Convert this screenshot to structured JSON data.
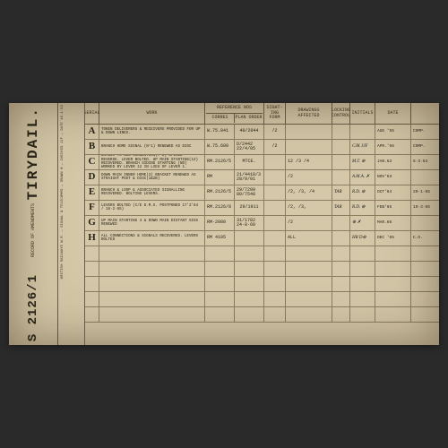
{
  "palette": {
    "paper": "#d4c8a8",
    "ink": "#2a2418",
    "rule": "#6b5d45",
    "rule_light": "#8a7d60",
    "frame": "#2a2a2a"
  },
  "left": {
    "title": "TIRYDAIL.",
    "subtitle": "RECORD OF AMENDMENTS",
    "reference": "S 2126/1",
    "meta": "BRITISH RAILWAYS W.R. — SIGNAL & TELECOMMS — DRAWN ⊕ — CHECKED JJF — DATE 16.1.63"
  },
  "headers": {
    "serial": "SERIAL",
    "work": "WORK",
    "reference": "REFERENCE NOS",
    "ref_corres": "CORRES",
    "ref_plan": "PLAN ORDER",
    "sighting": "SIGHT-ING FORM",
    "drawings": "DRAWINGS AFFECTED",
    "locking": "LOCKING CONTROL",
    "initials": "INITIALS",
    "date": "DATE",
    "comp": ""
  },
  "rows": [
    {
      "serial": "A",
      "work": "TOKEN DELIVERERS & RECEIVERS PROVIDED FOR UP & DOWN LINES.",
      "ref1": "W.75.841",
      "ref2": "40/2044",
      "sight": "/2",
      "draw": "",
      "lock": "",
      "init": "",
      "date": "AUG '55",
      "comp": "COMP."
    },
    {
      "serial": "B",
      "work": "BRANCH HOME SIGNAL (N°1) RENEWED AS DISC",
      "ref1": "W.75.600",
      "ref2": "D/2442  22/4/05",
      "sight": "/2",
      "draw": "",
      "lock": "",
      "init": "CJK  JJF",
      "date": "APR.'56",
      "comp": "COMP."
    },
    {
      "serial": "C",
      "work": "BRANCH TO SDG CONNECTION(7-8) SPIKED REVERSE. LEVER BOLTED. UP MAIN STARTING(12) RECOVERED. BRANCH SIDING STARTING (ND) WORKED BY LEVER 12 IN LIEU OF LEVER 1.",
      "ref1": "RM.2126/5",
      "ref2": "MTCE.",
      "sight": "",
      "draw": "12 /3 /4",
      "lock": "",
      "init": "M.T.  ⊕",
      "date": "JAN.63",
      "comp": "6·3·63"
    },
    {
      "serial": "D",
      "work": "DOWN MAIN INNER HOME(3) BRACKET RENEWED AS STRAIGHT POST & DISC(1&2B)",
      "ref1": "RM",
      "ref2": "21/4418/3 28/9/01",
      "sight": "",
      "draw": "/2",
      "lock": "",
      "init": "A.M.A.  ✗",
      "date": "NOV'63",
      "comp": ""
    },
    {
      "serial": "E",
      "work": "BRANCH & LOOP & ASSOCIATED SIGNALLING RECOVERED. BOLTING LEVERS.",
      "ref1": "RM.2126/5",
      "ref2": "29/7209   80/7548",
      "sight": "",
      "draw": "/2, /3, /4",
      "lock": "TAR",
      "init": "R.D.  ⊕",
      "date": "OCT'64",
      "comp": "29·1·65"
    },
    {
      "serial": "F",
      "work": "LEVERS BOLTED (C/E D.M.S. POSTPONED 17'2'64 / 18·2·65)",
      "ref1": "RM.2126/8",
      "ref2": "29/1911",
      "sight": "",
      "draw": "/2, /3,",
      "lock": "TAR",
      "init": "R.D.  ⊕",
      "date": "FEB'65",
      "comp": "10·3·65"
    },
    {
      "serial": "G",
      "work": "UP MAIN STARTING 4 & DOWN MAIN DISTANT SIGS RENEWED",
      "ref1": "RM·2080",
      "ref2": "31/1782  24·8·60",
      "sight": "",
      "draw": "/2",
      "lock": "",
      "init": "⊕  ✗",
      "date": "MAR.66",
      "comp": ""
    },
    {
      "serial": "H",
      "work": "ALL CONNECTIONS & SIGNALS RECOVERED. LEVERS BOLTED",
      "ref1": "RM 4105",
      "ref2": "",
      "sight": "",
      "draw": "ALL",
      "lock": "",
      "init": "HR  D⊕",
      "date": "DEC '65",
      "comp": "C.O."
    }
  ],
  "blank_rows": 5
}
